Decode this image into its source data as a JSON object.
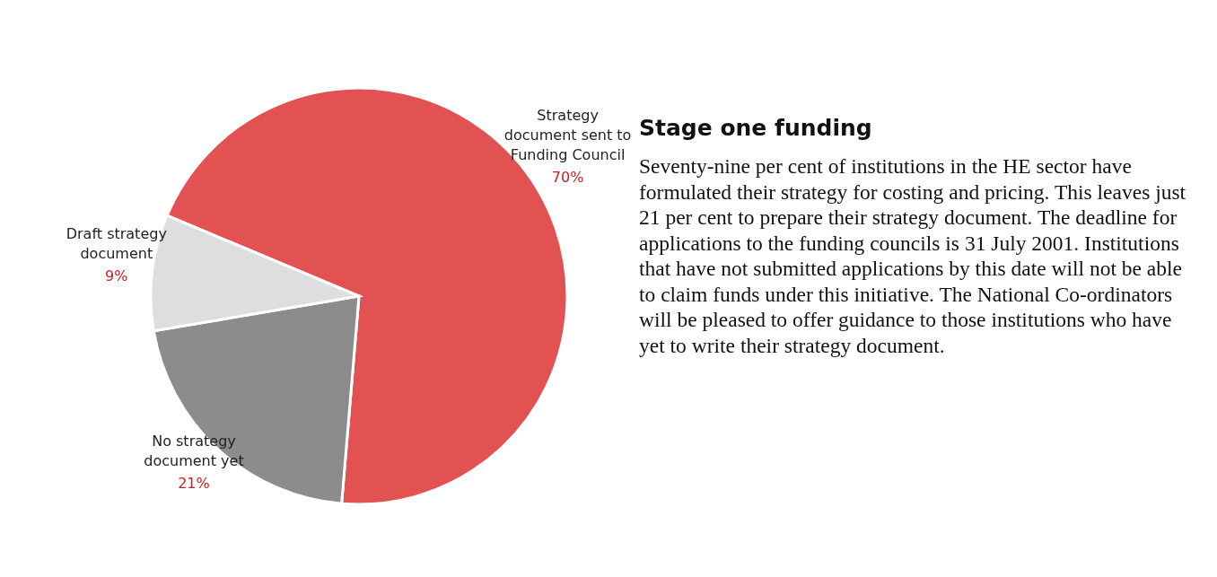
{
  "chart_data": [
    {
      "type": "pie",
      "categories": [
        "Strategy document sent to Funding Council",
        "No strategy document yet",
        "Draft strategy document"
      ],
      "values": [
        70,
        21,
        9
      ],
      "value_labels": [
        "70%",
        "21%",
        "9%"
      ],
      "colors": [
        "#e25252",
        "#8c8c8c",
        "#dedede"
      ]
    },
    {
      "type": "other",
      "title": "Stage one funding",
      "annotations": [
        "Seventy-nine per cent of institutions in the HE sector have formulated their strategy for costing and pricing. This leaves just 21 per cent to prepare their strategy document. The deadline for applications to the funding councils is 31 July 2001. Institutions that have not submitted applications by this date will not be able to claim funds under this initiative. The National Co-ordinators will be pleased to offer guidance to those institutions who have yet to write their strategy document."
      ]
    }
  ]
}
